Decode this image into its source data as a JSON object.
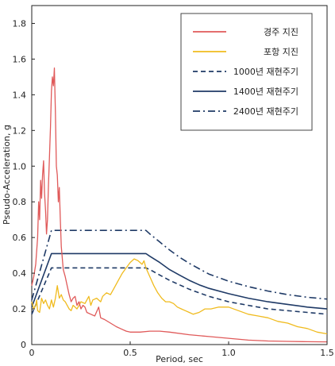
{
  "chart_data": {
    "type": "line",
    "xlabel": "Period, sec",
    "ylabel": "Pseudo-Acceleration, g",
    "xlim": [
      0,
      1.5
    ],
    "ylim": [
      0,
      1.9
    ],
    "x_ticks": [
      "0",
      "0.5",
      "1.0",
      "1.5"
    ],
    "x_tick_values": [
      0,
      0.5,
      1.0,
      1.5
    ],
    "y_ticks": [
      "0",
      "0.2",
      "0.4",
      "0.6",
      "0.8",
      "1.0",
      "1.2",
      "1.4",
      "1.6",
      "1.8"
    ],
    "y_tick_values": [
      0,
      0.2,
      0.4,
      0.6,
      0.8,
      1.0,
      1.2,
      1.4,
      1.6,
      1.8
    ],
    "grid": false,
    "legend_position": "top-right",
    "series": [
      {
        "name": "경주 지진",
        "color": "#e05a5a",
        "style": "solid",
        "points": [
          [
            0,
            0.33
          ],
          [
            0.01,
            0.38
          ],
          [
            0.02,
            0.45
          ],
          [
            0.03,
            0.6
          ],
          [
            0.035,
            0.8
          ],
          [
            0.04,
            0.7
          ],
          [
            0.045,
            0.92
          ],
          [
            0.05,
            0.82
          ],
          [
            0.055,
            0.95
          ],
          [
            0.06,
            1.03
          ],
          [
            0.065,
            0.85
          ],
          [
            0.07,
            0.75
          ],
          [
            0.075,
            0.62
          ],
          [
            0.08,
            0.7
          ],
          [
            0.085,
            0.9
          ],
          [
            0.09,
            1.05
          ],
          [
            0.095,
            1.22
          ],
          [
            0.1,
            1.42
          ],
          [
            0.105,
            1.5
          ],
          [
            0.11,
            1.45
          ],
          [
            0.115,
            1.55
          ],
          [
            0.12,
            1.3
          ],
          [
            0.125,
            1.0
          ],
          [
            0.13,
            0.95
          ],
          [
            0.135,
            0.8
          ],
          [
            0.14,
            0.88
          ],
          [
            0.145,
            0.7
          ],
          [
            0.15,
            0.55
          ],
          [
            0.16,
            0.42
          ],
          [
            0.17,
            0.38
          ],
          [
            0.18,
            0.33
          ],
          [
            0.19,
            0.28
          ],
          [
            0.2,
            0.24
          ],
          [
            0.21,
            0.26
          ],
          [
            0.22,
            0.27
          ],
          [
            0.23,
            0.22
          ],
          [
            0.24,
            0.24
          ],
          [
            0.25,
            0.2
          ],
          [
            0.26,
            0.22
          ],
          [
            0.27,
            0.21
          ],
          [
            0.28,
            0.18
          ],
          [
            0.3,
            0.17
          ],
          [
            0.32,
            0.16
          ],
          [
            0.34,
            0.21
          ],
          [
            0.35,
            0.15
          ],
          [
            0.37,
            0.14
          ],
          [
            0.4,
            0.12
          ],
          [
            0.43,
            0.1
          ],
          [
            0.45,
            0.09
          ],
          [
            0.48,
            0.075
          ],
          [
            0.5,
            0.07
          ],
          [
            0.55,
            0.07
          ],
          [
            0.6,
            0.075
          ],
          [
            0.65,
            0.075
          ],
          [
            0.7,
            0.07
          ],
          [
            0.8,
            0.055
          ],
          [
            0.9,
            0.045
          ],
          [
            1.0,
            0.035
          ],
          [
            1.1,
            0.025
          ],
          [
            1.2,
            0.02
          ],
          [
            1.3,
            0.018
          ],
          [
            1.4,
            0.016
          ],
          [
            1.5,
            0.015
          ]
        ]
      },
      {
        "name": "포항 지진",
        "color": "#f0bb1e",
        "style": "solid",
        "points": [
          [
            0,
            0.24
          ],
          [
            0.01,
            0.2
          ],
          [
            0.02,
            0.22
          ],
          [
            0.025,
            0.25
          ],
          [
            0.03,
            0.19
          ],
          [
            0.04,
            0.18
          ],
          [
            0.05,
            0.26
          ],
          [
            0.06,
            0.23
          ],
          [
            0.07,
            0.25
          ],
          [
            0.08,
            0.22
          ],
          [
            0.09,
            0.2
          ],
          [
            0.1,
            0.25
          ],
          [
            0.11,
            0.21
          ],
          [
            0.12,
            0.26
          ],
          [
            0.13,
            0.33
          ],
          [
            0.14,
            0.26
          ],
          [
            0.15,
            0.28
          ],
          [
            0.16,
            0.25
          ],
          [
            0.17,
            0.24
          ],
          [
            0.18,
            0.22
          ],
          [
            0.19,
            0.2
          ],
          [
            0.2,
            0.19
          ],
          [
            0.21,
            0.22
          ],
          [
            0.22,
            0.21
          ],
          [
            0.23,
            0.2
          ],
          [
            0.25,
            0.24
          ],
          [
            0.27,
            0.23
          ],
          [
            0.29,
            0.27
          ],
          [
            0.3,
            0.22
          ],
          [
            0.31,
            0.25
          ],
          [
            0.33,
            0.26
          ],
          [
            0.35,
            0.24
          ],
          [
            0.36,
            0.27
          ],
          [
            0.38,
            0.29
          ],
          [
            0.4,
            0.28
          ],
          [
            0.42,
            0.32
          ],
          [
            0.44,
            0.36
          ],
          [
            0.46,
            0.4
          ],
          [
            0.48,
            0.43
          ],
          [
            0.5,
            0.46
          ],
          [
            0.52,
            0.48
          ],
          [
            0.54,
            0.47
          ],
          [
            0.56,
            0.45
          ],
          [
            0.57,
            0.47
          ],
          [
            0.58,
            0.43
          ],
          [
            0.6,
            0.38
          ],
          [
            0.62,
            0.33
          ],
          [
            0.64,
            0.29
          ],
          [
            0.66,
            0.26
          ],
          [
            0.68,
            0.24
          ],
          [
            0.7,
            0.24
          ],
          [
            0.72,
            0.23
          ],
          [
            0.74,
            0.21
          ],
          [
            0.76,
            0.2
          ],
          [
            0.78,
            0.19
          ],
          [
            0.8,
            0.18
          ],
          [
            0.82,
            0.17
          ],
          [
            0.85,
            0.18
          ],
          [
            0.88,
            0.2
          ],
          [
            0.91,
            0.2
          ],
          [
            0.95,
            0.21
          ],
          [
            1.0,
            0.21
          ],
          [
            1.05,
            0.19
          ],
          [
            1.1,
            0.17
          ],
          [
            1.15,
            0.16
          ],
          [
            1.2,
            0.15
          ],
          [
            1.25,
            0.13
          ],
          [
            1.3,
            0.12
          ],
          [
            1.35,
            0.1
          ],
          [
            1.4,
            0.09
          ],
          [
            1.45,
            0.07
          ],
          [
            1.5,
            0.06
          ]
        ]
      },
      {
        "name": "1000년 재현주기",
        "color": "#1f3a66",
        "style": "dashed",
        "points": [
          [
            0,
            0.17
          ],
          [
            0.1,
            0.43
          ],
          [
            0.58,
            0.43
          ],
          [
            0.6,
            0.42
          ],
          [
            0.65,
            0.39
          ],
          [
            0.7,
            0.36
          ],
          [
            0.75,
            0.335
          ],
          [
            0.8,
            0.31
          ],
          [
            0.85,
            0.29
          ],
          [
            0.9,
            0.27
          ],
          [
            1.0,
            0.24
          ],
          [
            1.1,
            0.22
          ],
          [
            1.2,
            0.2
          ],
          [
            1.3,
            0.19
          ],
          [
            1.4,
            0.18
          ],
          [
            1.5,
            0.17
          ]
        ]
      },
      {
        "name": "1400년 재현주기",
        "color": "#1f3a66",
        "style": "solid",
        "points": [
          [
            0,
            0.21
          ],
          [
            0.1,
            0.51
          ],
          [
            0.58,
            0.51
          ],
          [
            0.6,
            0.495
          ],
          [
            0.65,
            0.46
          ],
          [
            0.7,
            0.42
          ],
          [
            0.75,
            0.39
          ],
          [
            0.8,
            0.36
          ],
          [
            0.85,
            0.335
          ],
          [
            0.9,
            0.315
          ],
          [
            1.0,
            0.285
          ],
          [
            1.1,
            0.26
          ],
          [
            1.2,
            0.24
          ],
          [
            1.3,
            0.225
          ],
          [
            1.4,
            0.21
          ],
          [
            1.5,
            0.2
          ]
        ]
      },
      {
        "name": "2400년 재현주기",
        "color": "#1f3a66",
        "style": "dashdot",
        "points": [
          [
            0,
            0.25
          ],
          [
            0.1,
            0.64
          ],
          [
            0.58,
            0.64
          ],
          [
            0.6,
            0.62
          ],
          [
            0.65,
            0.575
          ],
          [
            0.7,
            0.53
          ],
          [
            0.75,
            0.49
          ],
          [
            0.8,
            0.455
          ],
          [
            0.85,
            0.425
          ],
          [
            0.9,
            0.395
          ],
          [
            1.0,
            0.355
          ],
          [
            1.1,
            0.325
          ],
          [
            1.2,
            0.3
          ],
          [
            1.3,
            0.28
          ],
          [
            1.4,
            0.265
          ],
          [
            1.5,
            0.255
          ]
        ]
      }
    ]
  }
}
